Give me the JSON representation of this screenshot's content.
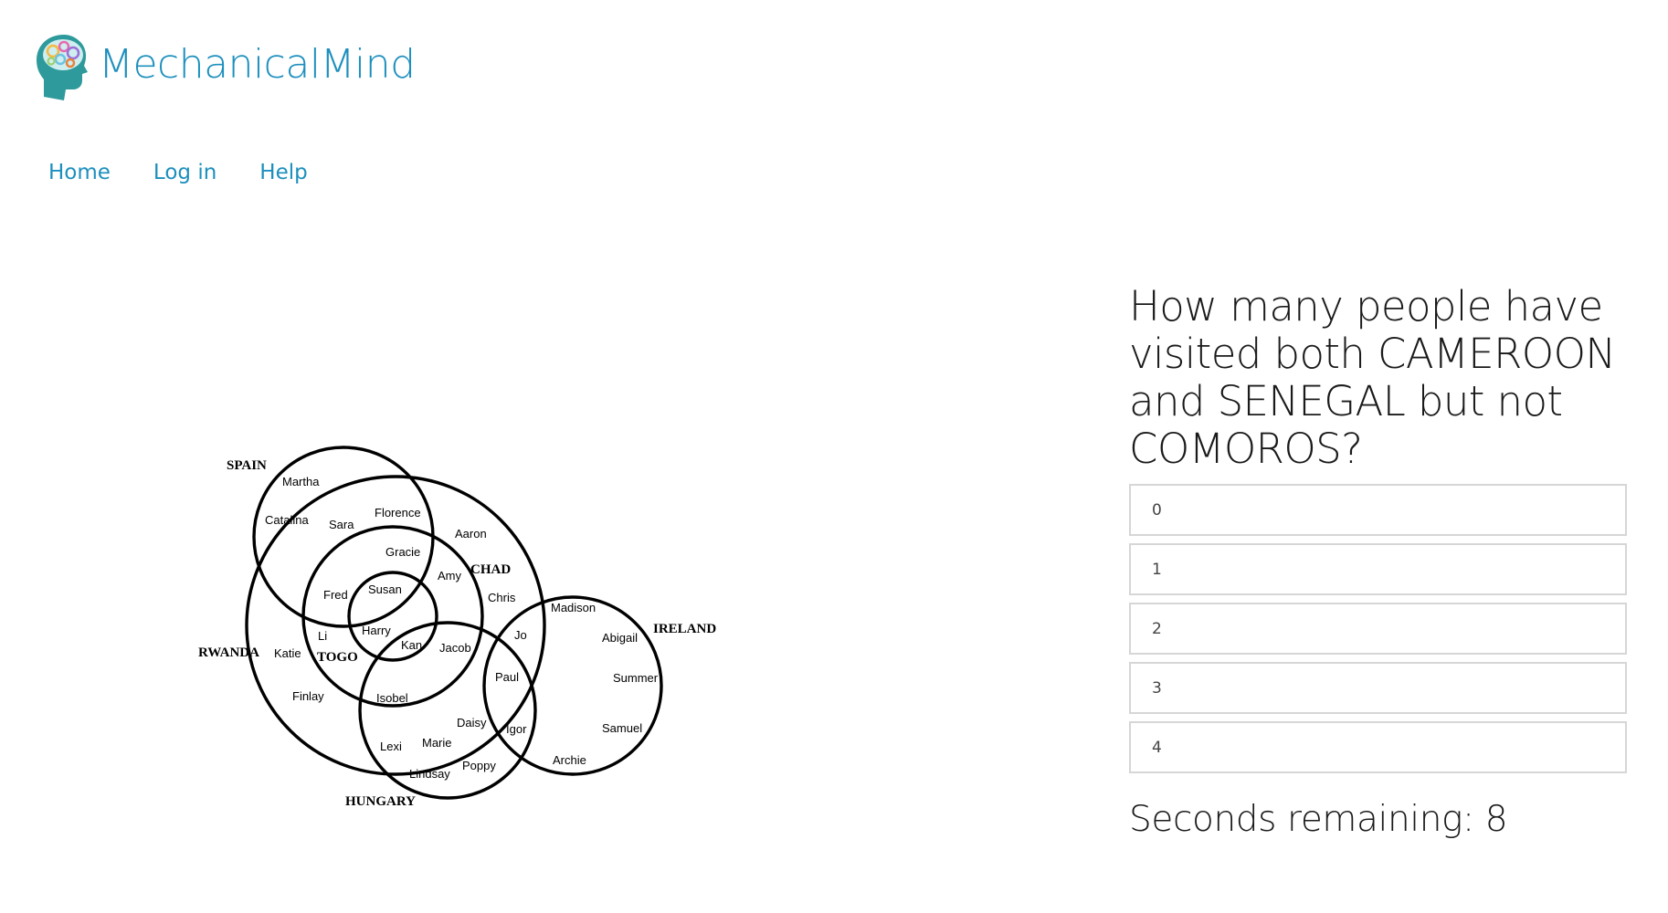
{
  "brand": {
    "name": "MechanicalMind",
    "logo_icon": "brain-gears-head-icon",
    "color": "#1d8fbd"
  },
  "nav": {
    "items": [
      {
        "label": "Home"
      },
      {
        "label": "Log in"
      },
      {
        "label": "Help"
      }
    ]
  },
  "diagram": {
    "sets": [
      "SPAIN",
      "CHAD",
      "RWANDA",
      "TOGO",
      "IRELAND",
      "HUNGARY"
    ],
    "names": [
      "Martha",
      "Catalina",
      "Sara",
      "Florence",
      "Aaron",
      "Gracie",
      "Amy",
      "Chris",
      "Fred",
      "Susan",
      "Li",
      "Harry",
      "Kan",
      "Jacob",
      "Katie",
      "Jo",
      "Madison",
      "Abigail",
      "Summer",
      "Paul",
      "Finlay",
      "Isobel",
      "Daisy",
      "Igor",
      "Samuel",
      "Lexi",
      "Marie",
      "Archie",
      "Poppy",
      "Lindsay"
    ]
  },
  "question": {
    "text": "How many people have visited both CAMEROON and SENEGAL but not COMOROS?",
    "options": [
      "0",
      "1",
      "2",
      "3",
      "4"
    ]
  },
  "timer": {
    "label": "Seconds remaining: 8"
  }
}
